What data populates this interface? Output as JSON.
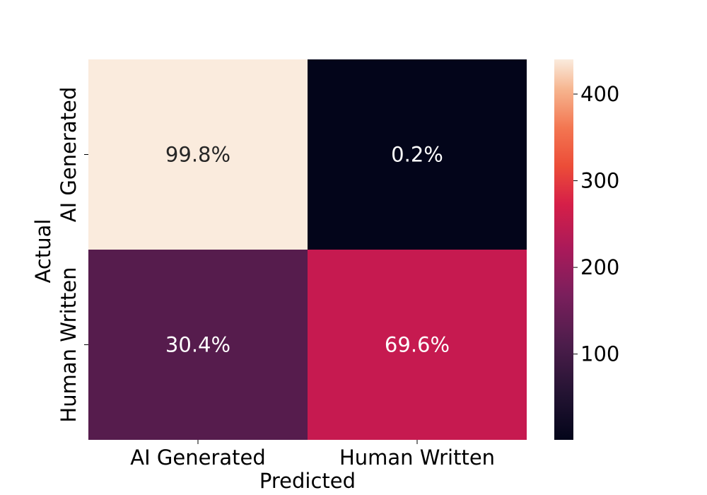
{
  "chart_data": {
    "type": "heatmap",
    "title": "",
    "xlabel": "Predicted",
    "ylabel": "Actual",
    "x_categories": [
      "AI Generated",
      "Human Written"
    ],
    "y_categories": [
      "AI Generated",
      "Human Written"
    ],
    "cells": [
      {
        "actual": "AI Generated",
        "predicted": "AI Generated",
        "label": "99.8%",
        "count": 440,
        "color": "#faebdd"
      },
      {
        "actual": "AI Generated",
        "predicted": "Human Written",
        "label": "0.2%",
        "count": 1,
        "color": "#03051a"
      },
      {
        "actual": "Human Written",
        "predicted": "AI Generated",
        "label": "30.4%",
        "count": 134,
        "color": "#561c4d"
      },
      {
        "actual": "Human Written",
        "predicted": "Human Written",
        "label": "69.6%",
        "count": 307,
        "color": "#c61a50"
      }
    ],
    "colorbar": {
      "colormap": "rocket",
      "range": [
        1,
        440
      ],
      "ticks": [
        "100",
        "200",
        "300",
        "400"
      ]
    }
  }
}
